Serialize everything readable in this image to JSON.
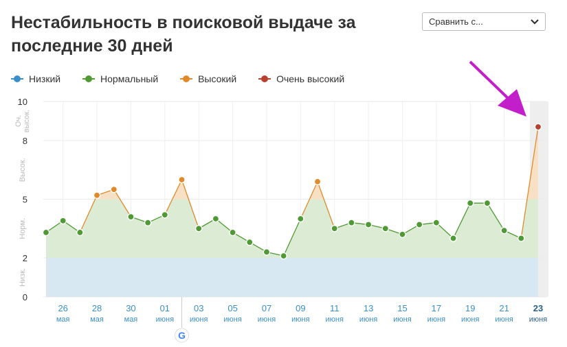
{
  "header": {
    "title": "Нестабильность в поисковой выдаче за последние 30 дней",
    "compare_label": "Сравнить с..."
  },
  "legend": [
    {
      "label": "Низкий",
      "color": "#3a8fc9"
    },
    {
      "label": "Нормальный",
      "color": "#4f9a34"
    },
    {
      "label": "Высокий",
      "color": "#e08a2a"
    },
    {
      "label": "Очень высокий",
      "color": "#b8402e"
    }
  ],
  "chart_data": {
    "type": "area",
    "ylim": [
      0,
      10
    ],
    "yticks": [
      "0",
      "2",
      "5",
      "8",
      "10"
    ],
    "zones": [
      {
        "label": "Низк.",
        "from": 0,
        "to": 2
      },
      {
        "label": "Норм.",
        "from": 2,
        "to": 5
      },
      {
        "label": "Высок.",
        "from": 5,
        "to": 8
      },
      {
        "label": "Оч. высок.",
        "from": 8,
        "to": 10
      }
    ],
    "x_ticks": [
      {
        "day": "26",
        "month": "мая"
      },
      {
        "day": "28",
        "month": "мая"
      },
      {
        "day": "30",
        "month": "мая"
      },
      {
        "day": "01",
        "month": "июня"
      },
      {
        "day": "03",
        "month": "июня"
      },
      {
        "day": "05",
        "month": "июня"
      },
      {
        "day": "07",
        "month": "июня"
      },
      {
        "day": "09",
        "month": "июня"
      },
      {
        "day": "11",
        "month": "июня"
      },
      {
        "day": "13",
        "month": "июня"
      },
      {
        "day": "15",
        "month": "июня"
      },
      {
        "day": "17",
        "month": "июня"
      },
      {
        "day": "19",
        "month": "июня"
      },
      {
        "day": "21",
        "month": "июня"
      },
      {
        "day": "23",
        "month": "июня"
      }
    ],
    "series": [
      {
        "values": [
          3.3,
          3.9,
          3.3,
          5.2,
          5.5,
          4.1,
          3.8,
          4.2,
          6.0,
          3.5,
          4.0,
          3.3,
          2.8,
          2.3,
          2.1,
          4.0,
          5.9,
          3.5,
          3.8,
          3.7,
          3.5,
          3.2,
          3.7,
          3.8,
          3.0,
          4.8,
          4.8,
          3.4,
          3.0,
          8.7
        ]
      }
    ],
    "grid": true,
    "highlighted_last_day": true
  },
  "annotations": {
    "google_update_marker": "G"
  }
}
